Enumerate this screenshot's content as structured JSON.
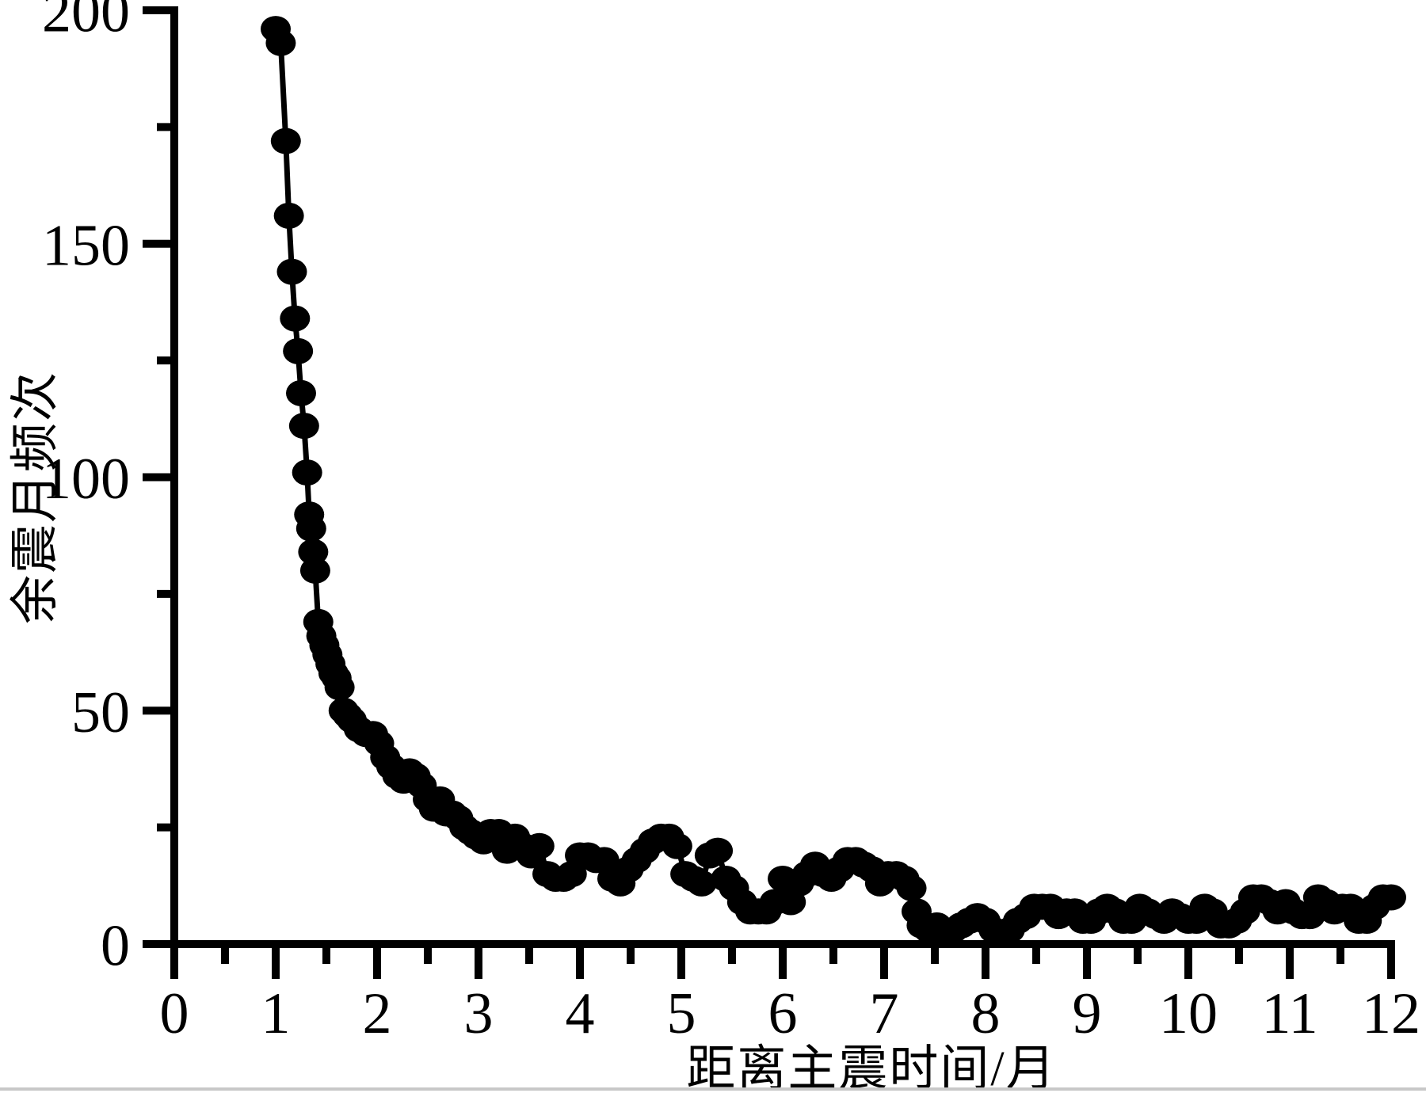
{
  "figure": {
    "background_color": "#ffffff",
    "axis_color": "#000000",
    "marker_color": "#000000",
    "line_color": "#000000",
    "bottom_strip_color": "#c8c8c8"
  },
  "chart_data": {
    "type": "scatter",
    "title": "",
    "xlabel": "距离主震时间/月",
    "ylabel": "余震月频次",
    "xlim": [
      0,
      12
    ],
    "ylim": [
      0,
      200
    ],
    "x_major_ticks": [
      0,
      1,
      2,
      3,
      4,
      5,
      6,
      7,
      8,
      9,
      10,
      11,
      12
    ],
    "x_minor_step": 0.5,
    "y_major_ticks": [
      0,
      50,
      100,
      150,
      200
    ],
    "y_minor_step": 25,
    "grid": false,
    "legend": "none",
    "marker": "filled-circle",
    "connected_by_line": true,
    "points": [
      [
        1.0,
        196
      ],
      [
        1.05,
        193
      ],
      [
        1.1,
        172
      ],
      [
        1.13,
        156
      ],
      [
        1.16,
        144
      ],
      [
        1.19,
        134
      ],
      [
        1.22,
        127
      ],
      [
        1.25,
        118
      ],
      [
        1.28,
        111
      ],
      [
        1.31,
        101
      ],
      [
        1.33,
        92
      ],
      [
        1.35,
        89
      ],
      [
        1.37,
        84
      ],
      [
        1.39,
        80
      ],
      [
        1.42,
        69
      ],
      [
        1.45,
        66
      ],
      [
        1.48,
        64
      ],
      [
        1.51,
        62
      ],
      [
        1.54,
        60
      ],
      [
        1.57,
        58
      ],
      [
        1.6,
        57
      ],
      [
        1.63,
        55
      ],
      [
        1.67,
        50
      ],
      [
        1.71,
        49
      ],
      [
        1.75,
        48
      ],
      [
        1.82,
        46
      ],
      [
        1.89,
        45
      ],
      [
        1.96,
        45
      ],
      [
        2.02,
        43
      ],
      [
        2.08,
        40
      ],
      [
        2.14,
        38
      ],
      [
        2.2,
        36
      ],
      [
        2.26,
        35
      ],
      [
        2.32,
        37
      ],
      [
        2.38,
        36
      ],
      [
        2.44,
        34
      ],
      [
        2.5,
        31
      ],
      [
        2.56,
        29
      ],
      [
        2.62,
        31
      ],
      [
        2.68,
        28
      ],
      [
        2.74,
        28
      ],
      [
        2.8,
        27
      ],
      [
        2.86,
        25
      ],
      [
        2.92,
        24
      ],
      [
        2.98,
        23
      ],
      [
        3.05,
        22
      ],
      [
        3.12,
        24
      ],
      [
        3.2,
        24
      ],
      [
        3.28,
        20
      ],
      [
        3.36,
        23
      ],
      [
        3.44,
        21
      ],
      [
        3.52,
        19
      ],
      [
        3.6,
        21
      ],
      [
        3.68,
        15
      ],
      [
        3.76,
        14
      ],
      [
        3.84,
        14
      ],
      [
        3.92,
        15
      ],
      [
        4.0,
        19
      ],
      [
        4.08,
        19
      ],
      [
        4.16,
        18
      ],
      [
        4.24,
        18
      ],
      [
        4.32,
        14
      ],
      [
        4.4,
        13
      ],
      [
        4.48,
        16
      ],
      [
        4.56,
        18
      ],
      [
        4.64,
        20
      ],
      [
        4.72,
        22
      ],
      [
        4.8,
        23
      ],
      [
        4.88,
        23
      ],
      [
        4.96,
        21
      ],
      [
        5.04,
        15
      ],
      [
        5.12,
        14
      ],
      [
        5.2,
        13
      ],
      [
        5.28,
        19
      ],
      [
        5.36,
        20
      ],
      [
        5.44,
        14
      ],
      [
        5.52,
        12
      ],
      [
        5.6,
        9
      ],
      [
        5.68,
        7
      ],
      [
        5.76,
        7
      ],
      [
        5.84,
        7
      ],
      [
        5.92,
        9
      ],
      [
        6.0,
        14
      ],
      [
        6.08,
        9
      ],
      [
        6.16,
        13
      ],
      [
        6.24,
        15
      ],
      [
        6.32,
        17
      ],
      [
        6.4,
        15
      ],
      [
        6.48,
        14
      ],
      [
        6.56,
        16
      ],
      [
        6.64,
        18
      ],
      [
        6.72,
        18
      ],
      [
        6.8,
        17
      ],
      [
        6.88,
        16
      ],
      [
        6.96,
        13
      ],
      [
        7.04,
        15
      ],
      [
        7.12,
        15
      ],
      [
        7.2,
        14
      ],
      [
        7.27,
        12
      ],
      [
        7.32,
        7
      ],
      [
        7.37,
        4
      ],
      [
        7.44,
        3
      ],
      [
        7.52,
        4
      ],
      [
        7.6,
        3
      ],
      [
        7.68,
        3
      ],
      [
        7.76,
        4
      ],
      [
        7.84,
        5
      ],
      [
        7.92,
        6
      ],
      [
        8.0,
        5
      ],
      [
        8.08,
        3
      ],
      [
        8.16,
        2
      ],
      [
        8.24,
        3
      ],
      [
        8.32,
        5
      ],
      [
        8.4,
        6
      ],
      [
        8.48,
        8
      ],
      [
        8.56,
        8
      ],
      [
        8.64,
        8
      ],
      [
        8.72,
        6
      ],
      [
        8.8,
        7
      ],
      [
        8.88,
        7
      ],
      [
        8.96,
        5
      ],
      [
        9.04,
        5
      ],
      [
        9.12,
        7
      ],
      [
        9.2,
        8
      ],
      [
        9.28,
        7
      ],
      [
        9.36,
        5
      ],
      [
        9.44,
        5
      ],
      [
        9.52,
        8
      ],
      [
        9.6,
        7
      ],
      [
        9.68,
        6
      ],
      [
        9.76,
        5
      ],
      [
        9.84,
        7
      ],
      [
        9.92,
        6
      ],
      [
        10.0,
        5
      ],
      [
        10.08,
        5
      ],
      [
        10.16,
        8
      ],
      [
        10.24,
        7
      ],
      [
        10.32,
        4
      ],
      [
        10.4,
        4
      ],
      [
        10.48,
        5
      ],
      [
        10.56,
        7
      ],
      [
        10.64,
        10
      ],
      [
        10.72,
        10
      ],
      [
        10.8,
        9
      ],
      [
        10.88,
        7
      ],
      [
        10.96,
        9
      ],
      [
        11.04,
        7
      ],
      [
        11.12,
        6
      ],
      [
        11.2,
        6
      ],
      [
        11.28,
        10
      ],
      [
        11.36,
        9
      ],
      [
        11.44,
        7
      ],
      [
        11.52,
        8
      ],
      [
        11.6,
        8
      ],
      [
        11.68,
        5
      ],
      [
        11.76,
        5
      ],
      [
        11.84,
        8
      ],
      [
        11.92,
        10
      ],
      [
        12.0,
        10
      ]
    ]
  }
}
